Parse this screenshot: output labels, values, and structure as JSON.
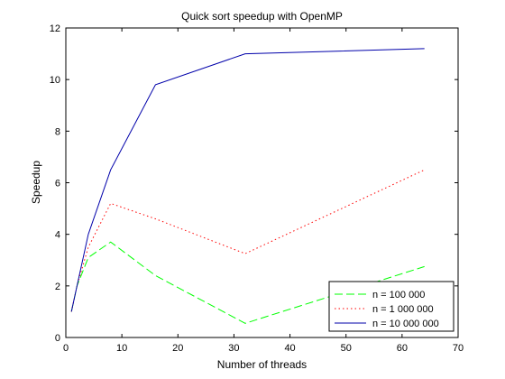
{
  "chart_data": {
    "type": "line",
    "title": "Quick sort speedup with OpenMP",
    "xlabel": "Number of threads",
    "ylabel": "Speedup",
    "xlim": [
      0,
      70
    ],
    "ylim": [
      0,
      12
    ],
    "xticks": [
      0,
      10,
      20,
      30,
      40,
      50,
      60,
      70
    ],
    "yticks": [
      0,
      2,
      4,
      6,
      8,
      10,
      12
    ],
    "grid": false,
    "legend_position": "bottom-right",
    "series": [
      {
        "name": "n = 100 000",
        "color": "#00ff00",
        "dash": "dashed",
        "x": [
          1,
          2,
          4,
          8,
          16,
          32,
          64
        ],
        "y": [
          1.0,
          2.0,
          3.1,
          3.7,
          2.4,
          0.55,
          2.75
        ]
      },
      {
        "name": "n = 1 000 000",
        "color": "#ff0000",
        "dash": "dotted",
        "x": [
          1,
          2,
          4,
          8,
          16,
          32,
          64
        ],
        "y": [
          1.0,
          2.0,
          3.5,
          5.2,
          4.6,
          3.25,
          6.5
        ]
      },
      {
        "name": "n = 10 000 000",
        "color": "#0000aa",
        "dash": "solid",
        "x": [
          1,
          2,
          4,
          8,
          16,
          32,
          64
        ],
        "y": [
          1.0,
          2.0,
          4.0,
          6.5,
          9.8,
          11.0,
          11.2
        ]
      }
    ]
  }
}
